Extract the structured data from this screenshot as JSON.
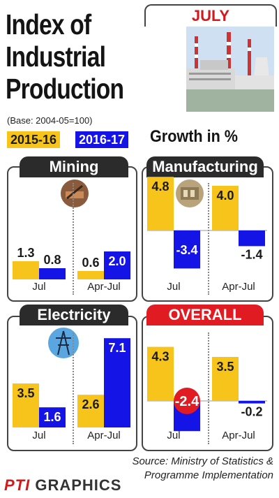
{
  "header": {
    "title_line1": "Index of",
    "title_line2": "Industrial",
    "title_line3": "Production",
    "month": "JULY",
    "base": "(Base: 2004-05=100)",
    "growth_label": "Growth in %"
  },
  "legend": {
    "series1": "2015-16",
    "series2": "2016-17"
  },
  "colors": {
    "series1": "#f6c41a",
    "series2": "#1414e6",
    "panel_title": "#2b2b2b",
    "overall_title": "#e01b22"
  },
  "chart_data": [
    {
      "type": "bar",
      "title": "Mining",
      "categories": [
        "Jul",
        "Apr-Jul"
      ],
      "series": [
        {
          "name": "2015-16",
          "values": [
            1.3,
            0.6
          ]
        },
        {
          "name": "2016-17",
          "values": [
            0.8,
            2.0
          ]
        }
      ]
    },
    {
      "type": "bar",
      "title": "Manufacturing",
      "categories": [
        "Jul",
        "Apr-Jul"
      ],
      "series": [
        {
          "name": "2015-16",
          "values": [
            4.8,
            4.0
          ]
        },
        {
          "name": "2016-17",
          "values": [
            -3.4,
            -1.4
          ]
        }
      ]
    },
    {
      "type": "bar",
      "title": "Electricity",
      "categories": [
        "Jul",
        "Apr-Jul"
      ],
      "series": [
        {
          "name": "2015-16",
          "values": [
            3.5,
            2.6
          ]
        },
        {
          "name": "2016-17",
          "values": [
            1.6,
            7.1
          ]
        }
      ]
    },
    {
      "type": "bar",
      "title": "OVERALL",
      "categories": [
        "Jul",
        "Apr-Jul"
      ],
      "series": [
        {
          "name": "2015-16",
          "values": [
            4.3,
            3.5
          ]
        },
        {
          "name": "2016-17",
          "values": [
            -2.4,
            -0.2
          ]
        }
      ]
    }
  ],
  "footer": {
    "source_line1": "Source: Ministry of Statistics &",
    "source_line2": "Programme Implementation",
    "brand_pti": "PTI",
    "brand_graphics": "GRAPHICS"
  }
}
